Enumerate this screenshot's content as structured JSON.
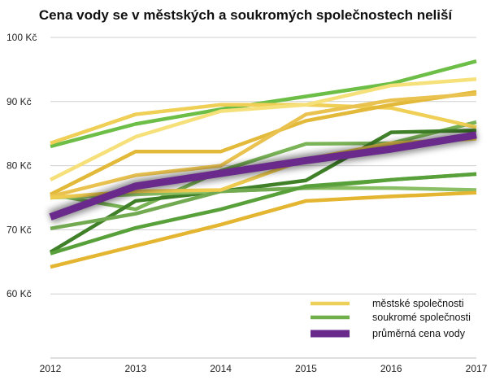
{
  "chart_data": {
    "type": "line",
    "title": "Cena vody se v městských a soukromých společnostech neliší",
    "xlabel": "",
    "ylabel": "",
    "x": [
      2012,
      2013,
      2014,
      2015,
      2016,
      2017
    ],
    "x_tick_labels": [
      "2012",
      "2013",
      "2014",
      "2015",
      "2016",
      "2017"
    ],
    "ylim": [
      50,
      100
    ],
    "y_ticks": [
      60,
      70,
      80,
      90,
      100
    ],
    "y_tick_labels": [
      "60 Kč",
      "70 Kč",
      "80 Kč",
      "90 Kč",
      "100 Kč"
    ],
    "grid": "horizontal",
    "legend_position": "bottom-right",
    "legend": [
      {
        "group": "mestske",
        "label": "městské společnosti",
        "color": "#edd05a"
      },
      {
        "group": "soukrome",
        "label": "soukromé společnosti",
        "color": "#6fb04a"
      },
      {
        "group": "prumer",
        "label": "průměrná cena vody",
        "color": "#6a2a8c"
      }
    ],
    "series": [
      {
        "group": "mestske",
        "color": "#efcf55",
        "values": [
          83.5,
          88.0,
          89.5,
          89.5,
          89.0,
          86.0
        ]
      },
      {
        "group": "mestske",
        "color": "#f6e07a",
        "values": [
          77.8,
          84.5,
          88.5,
          89.5,
          92.5,
          93.5
        ]
      },
      {
        "group": "mestske",
        "color": "#e3b93a",
        "values": [
          75.5,
          82.2,
          82.2,
          87.0,
          89.5,
          91.5
        ]
      },
      {
        "group": "mestske",
        "color": "#e9c250",
        "values": [
          75.2,
          78.5,
          80.0,
          88.0,
          90.2,
          91.2
        ]
      },
      {
        "group": "mestske",
        "color": "#efcc50",
        "values": [
          75.0,
          76.0,
          76.2,
          81.0,
          83.5,
          84.2
        ]
      },
      {
        "group": "mestske",
        "color": "#e3b530",
        "values": [
          64.2,
          67.5,
          70.8,
          74.5,
          75.2,
          75.8
        ]
      },
      {
        "group": "soukrome",
        "color": "#6cbe47",
        "values": [
          83.0,
          86.5,
          88.8,
          90.8,
          92.8,
          96.3
        ]
      },
      {
        "group": "soukrome",
        "color": "#7ab457",
        "values": [
          75.5,
          73.2,
          79.2,
          83.4,
          83.5,
          86.8
        ]
      },
      {
        "group": "soukrome",
        "color": "#3f8028",
        "values": [
          66.5,
          74.5,
          76.0,
          77.7,
          85.2,
          85.5
        ]
      },
      {
        "group": "soukrome",
        "color": "#8bbf66",
        "values": [
          75.0,
          75.5,
          76.0,
          76.5,
          76.5,
          76.2
        ]
      },
      {
        "group": "soukrome",
        "color": "#72aa52",
        "values": [
          70.2,
          72.5,
          76.0,
          76.5,
          77.8,
          78.7
        ]
      },
      {
        "group": "soukrome",
        "color": "#58a03a",
        "values": [
          66.3,
          70.3,
          73.2,
          76.8,
          77.8,
          78.7
        ]
      },
      {
        "group": "prumer",
        "color": "#6a2a8c",
        "values": [
          72.0,
          76.8,
          78.8,
          80.8,
          82.6,
          84.8
        ]
      }
    ]
  }
}
